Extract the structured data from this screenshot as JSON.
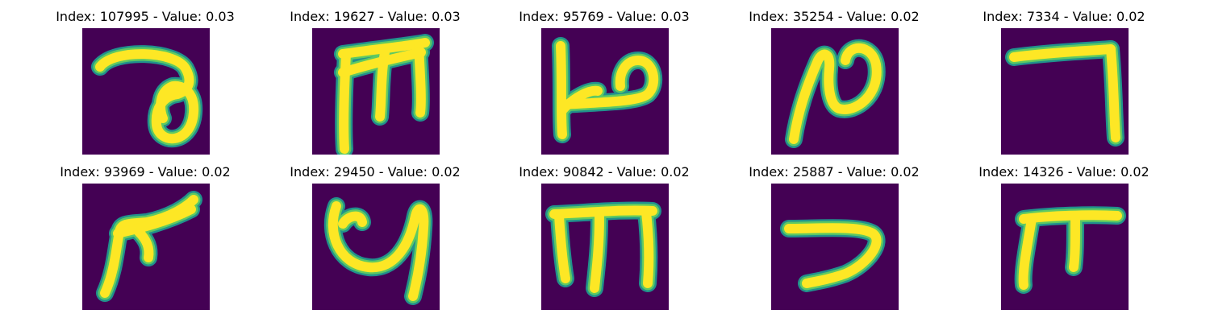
{
  "colors": {
    "background": "#440154",
    "stroke_core": "#fde725",
    "stroke_mid": "#5ec962",
    "stroke_edge": "#21918c"
  },
  "panels": [
    {
      "title": "Index: 107995 - Value: 0.03",
      "glyph": "looped-stroke-shape"
    },
    {
      "title": "Index: 19627 - Value: 0.03",
      "glyph": "m-like-shape"
    },
    {
      "title": "Index: 95769 - Value: 0.03",
      "glyph": "hook-shape"
    },
    {
      "title": "Index: 35254 - Value: 0.02",
      "glyph": "n-like-shape"
    },
    {
      "title": "Index: 7334 - Value: 0.02",
      "glyph": "angle-shape"
    },
    {
      "title": "Index: 93969 - Value: 0.02",
      "glyph": "forked-shape"
    },
    {
      "title": "Index: 29450 - Value: 0.02",
      "glyph": "u-like-shape"
    },
    {
      "title": "Index: 90842 - Value: 0.02",
      "glyph": "m-like-shape"
    },
    {
      "title": "Index: 25887 - Value: 0.02",
      "glyph": "reverse-c-shape"
    },
    {
      "title": "Index: 14326 - Value: 0.02",
      "glyph": "pi-like-shape"
    }
  ]
}
